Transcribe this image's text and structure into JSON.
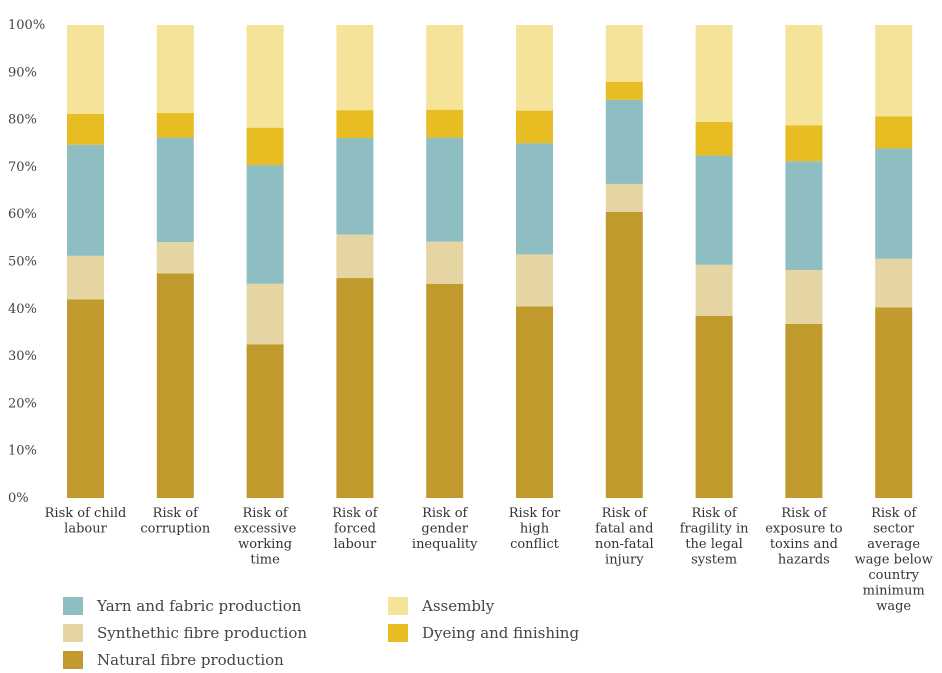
{
  "chart_data": {
    "type": "bar",
    "stacked": true,
    "percent": true,
    "categories": [
      [
        "Risk of child",
        "labour"
      ],
      [
        "Risk of",
        "corruption"
      ],
      [
        "Risk of",
        "excessive",
        "working",
        "time"
      ],
      [
        "Risk of",
        "forced",
        "labour"
      ],
      [
        "Risk of",
        "gender",
        "inequality"
      ],
      [
        "Risk for",
        "high",
        "conflict"
      ],
      [
        "Risk of",
        "fatal and",
        "non-fatal",
        "injury"
      ],
      [
        "Risk of",
        "fragility in",
        "the legal",
        "system"
      ],
      [
        "Risk of",
        "exposure to",
        "toxins and",
        "hazards"
      ],
      [
        "Risk of",
        "sector",
        "average",
        "wage below",
        "country",
        "minimum",
        "wage"
      ]
    ],
    "series": [
      {
        "name": "Natural fibre production",
        "color": "#c19a2e",
        "values": [
          42,
          47.5,
          32.5,
          46.5,
          45.3,
          40.5,
          60.5,
          38.5,
          36.8,
          40.3
        ]
      },
      {
        "name": "Synthethic fibre production",
        "color": "#e5d5a2",
        "values": [
          9.2,
          6.6,
          12.8,
          9.2,
          8.9,
          11,
          5.9,
          10.8,
          11.4,
          10.3
        ]
      },
      {
        "name": "Yarn and fabric production",
        "color": "#8ebec2",
        "values": [
          23.5,
          22.1,
          25.1,
          20.4,
          22,
          23.5,
          17.8,
          23.1,
          23,
          23.3
        ]
      },
      {
        "name": "Dyeing and finishing",
        "color": "#e8bc23",
        "values": [
          6.5,
          5.2,
          7.9,
          5.9,
          5.9,
          6.9,
          3.8,
          7.1,
          7.6,
          6.8
        ]
      },
      {
        "name": "Assembly",
        "color": "#f5e39a",
        "values": [
          18.8,
          18.6,
          21.7,
          18,
          17.9,
          18.1,
          12,
          20.5,
          21.2,
          19.3
        ]
      }
    ],
    "yticks": [
      "0%",
      "10%",
      "20%",
      "30%",
      "40%",
      "50%",
      "60%",
      "70%",
      "80%",
      "90%",
      "100%"
    ],
    "ylim": [
      0,
      100
    ],
    "grid": false,
    "legend": {
      "position": "bottom-left",
      "order": [
        "Yarn and fabric production",
        "Assembly",
        "Synthethic fibre production",
        "Dyeing and finishing",
        "Natural fibre production"
      ]
    }
  }
}
